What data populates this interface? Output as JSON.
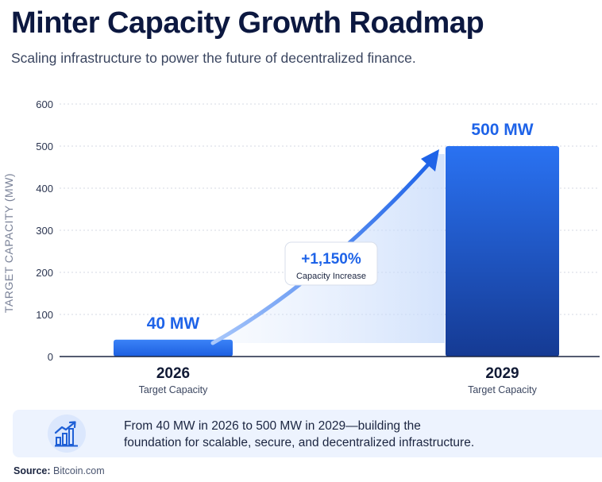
{
  "header": {
    "title": "Minter Capacity Growth Roadmap",
    "subtitle": "Scaling infrastructure to power the future of decentralized finance."
  },
  "chart_data": {
    "type": "bar",
    "categories": [
      "2026",
      "2029"
    ],
    "category_sublabels": [
      "Target Capacity",
      "Target Capacity"
    ],
    "values": [
      40,
      500
    ],
    "value_labels": [
      "40 MW",
      "500 MW"
    ],
    "ylabel": "TARGET CAPACITY (MW)",
    "ylim": [
      0,
      600
    ],
    "yticks": [
      0,
      100,
      200,
      300,
      400,
      500,
      600
    ],
    "grid": true,
    "annotation": {
      "value": "+1,150%",
      "label": "Capacity Increase"
    },
    "colors": {
      "bar_light": "#2a72f2",
      "bar_dark": "#153a93",
      "accent": "#1e63e8",
      "grid": "#d5d9e3"
    }
  },
  "footer_panel": {
    "icon": "growth-chart-icon",
    "line1": "From 40 MW in 2026 to 500 MW in 2029—building the",
    "line2": "foundation for scalable, secure, and decentralized infrastructure."
  },
  "source": {
    "label": "Source:",
    "value": "Bitcoin.com"
  }
}
